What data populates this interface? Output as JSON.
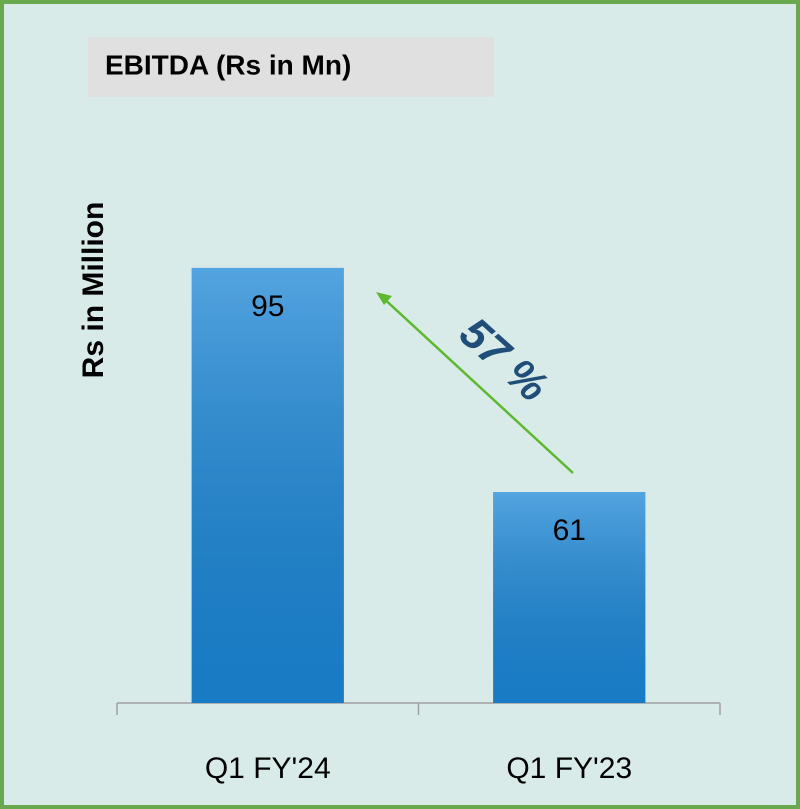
{
  "chart_data": {
    "type": "bar",
    "title": "EBITDA  (Rs in Mn)",
    "ylabel": "Rs in Million",
    "categories": [
      "Q1 FY'24",
      "Q1 FY'23"
    ],
    "values": [
      95,
      61
    ],
    "color": "#1a86d6",
    "ylim": [
      29,
      110
    ],
    "annotation": "57 %",
    "grid": false
  }
}
